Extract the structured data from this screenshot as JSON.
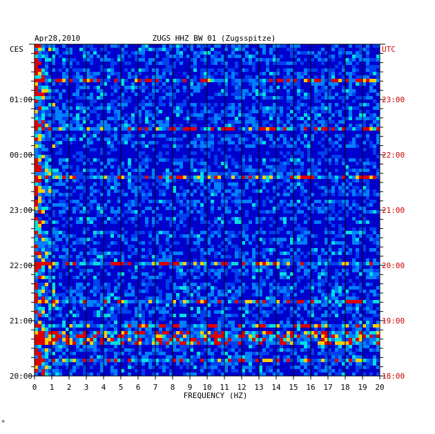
{
  "header": {
    "date": "Apr28,2010",
    "station": "ZUGS HHZ BW 01 (Zugsspitze)"
  },
  "axes": {
    "left_tz": "CES",
    "right_tz": "UTC",
    "xlabel": "FREQUENCY (HZ)"
  },
  "footnote": "*",
  "colors": {
    "background": "#0000cc",
    "right_axis": "#cc0000",
    "frame": "#000000"
  },
  "chart_data": {
    "type": "heatmap",
    "x_range": [
      0,
      20
    ],
    "x_ticks": [
      "0",
      "1",
      "2",
      "3",
      "4",
      "5",
      "6",
      "7",
      "8",
      "9",
      "10",
      "11",
      "12",
      "13",
      "14",
      "15",
      "16",
      "17",
      "18",
      "19",
      "20"
    ],
    "left_ticks": [
      "01:00",
      "00:00",
      "23:00",
      "22:00",
      "21:00",
      "20:00"
    ],
    "right_ticks": [
      "23:00",
      "22:00",
      "21:00",
      "20:00",
      "19:00",
      "18:00"
    ],
    "time_span_hours": 6,
    "grid": true,
    "colormap": [
      "blue",
      "cyan",
      "yellow",
      "red"
    ]
  }
}
